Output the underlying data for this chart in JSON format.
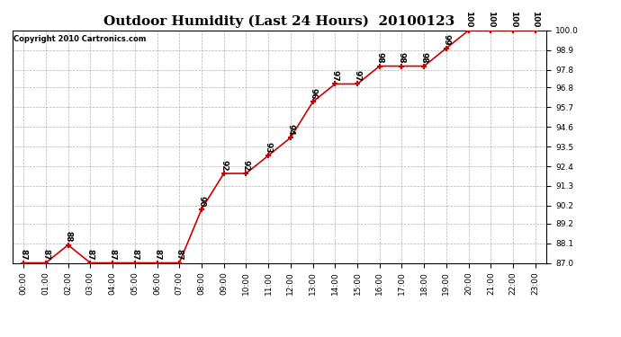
{
  "title": "Outdoor Humidity (Last 24 Hours)  20100123",
  "copyright": "Copyright 2010 Cartronics.com",
  "x_labels": [
    "00:00",
    "01:00",
    "02:00",
    "03:00",
    "04:00",
    "05:00",
    "06:00",
    "07:00",
    "08:00",
    "09:00",
    "10:00",
    "11:00",
    "12:00",
    "13:00",
    "14:00",
    "15:00",
    "16:00",
    "17:00",
    "18:00",
    "19:00",
    "20:00",
    "21:00",
    "22:00",
    "23:00"
  ],
  "hours": [
    0,
    1,
    2,
    3,
    4,
    5,
    6,
    7,
    8,
    9,
    10,
    11,
    12,
    13,
    14,
    15,
    16,
    17,
    18,
    19,
    20,
    21,
    22,
    23
  ],
  "values": [
    87,
    87,
    88,
    87,
    87,
    87,
    87,
    87,
    90,
    92,
    92,
    93,
    94,
    96,
    97,
    97,
    98,
    98,
    98,
    99,
    100,
    100,
    100,
    100
  ],
  "ylim_min": 87.0,
  "ylim_max": 100.0,
  "yticks": [
    87.0,
    88.1,
    89.2,
    90.2,
    91.3,
    92.4,
    93.5,
    94.6,
    95.7,
    96.8,
    97.8,
    98.9,
    100.0
  ],
  "line_color": "#cc0000",
  "marker": "+",
  "bg_color": "#ffffff",
  "grid_color": "#b0b0b0",
  "title_fontsize": 11,
  "label_fontsize": 6.5,
  "annotation_fontsize": 6.5,
  "copyright_fontsize": 6
}
